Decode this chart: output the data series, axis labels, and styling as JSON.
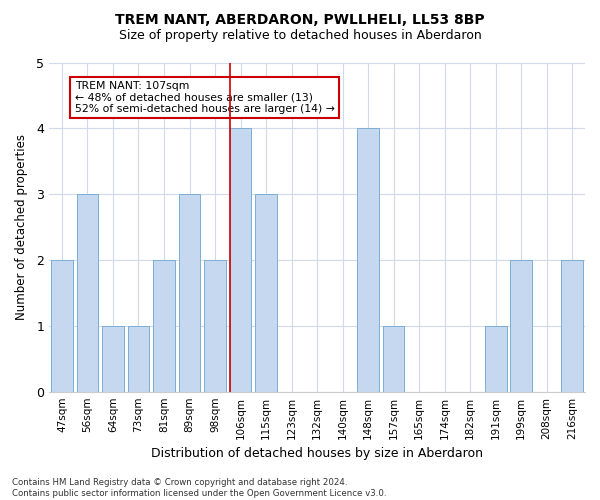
{
  "title": "TREM NANT, ABERDARON, PWLLHELI, LL53 8BP",
  "subtitle": "Size of property relative to detached houses in Aberdaron",
  "xlabel": "Distribution of detached houses by size in Aberdaron",
  "ylabel": "Number of detached properties",
  "categories": [
    "47sqm",
    "56sqm",
    "64sqm",
    "73sqm",
    "81sqm",
    "89sqm",
    "98sqm",
    "106sqm",
    "115sqm",
    "123sqm",
    "132sqm",
    "140sqm",
    "148sqm",
    "157sqm",
    "165sqm",
    "174sqm",
    "182sqm",
    "191sqm",
    "199sqm",
    "208sqm",
    "216sqm"
  ],
  "values": [
    2,
    3,
    1,
    1,
    2,
    3,
    2,
    4,
    3,
    0,
    0,
    0,
    4,
    1,
    0,
    0,
    0,
    1,
    2,
    0,
    2
  ],
  "bar_color": "#c5d8ef",
  "bar_edge_color": "#7bafd4",
  "highlight_index": 7,
  "highlight_color": "#cc0000",
  "ylim": [
    0,
    5
  ],
  "yticks": [
    0,
    1,
    2,
    3,
    4,
    5
  ],
  "annotation_text": "TREM NANT: 107sqm\n← 48% of detached houses are smaller (13)\n52% of semi-detached houses are larger (14) →",
  "annotation_box_color": "#ffffff",
  "annotation_box_edge": "#cc0000",
  "footer": "Contains HM Land Registry data © Crown copyright and database right 2024.\nContains public sector information licensed under the Open Government Licence v3.0.",
  "background_color": "#ffffff",
  "grid_color": "#d0daea"
}
